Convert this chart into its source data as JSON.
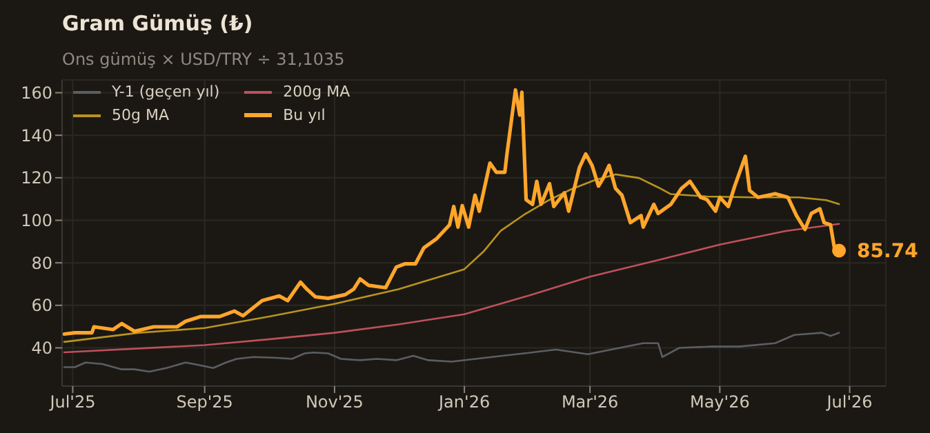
{
  "chart_data": {
    "type": "line",
    "title": "Gram Gümüş (₺)",
    "subtitle": "Ons gümüş × USD/TRY ÷ 31,1035",
    "xlim": [
      "2025-06-26",
      "2026-07-18"
    ],
    "xticks": [
      {
        "value": "2025-07-01",
        "label": "Jul'25"
      },
      {
        "value": "2025-09-01",
        "label": "Sep'25"
      },
      {
        "value": "2025-11-01",
        "label": "Nov'25"
      },
      {
        "value": "2026-01-01",
        "label": "Jan'26"
      },
      {
        "value": "2026-03-01",
        "label": "Mar'26"
      },
      {
        "value": "2026-05-01",
        "label": "May'26"
      },
      {
        "value": "2026-07-01",
        "label": "Jul'26"
      }
    ],
    "ylim": [
      22,
      166
    ],
    "yticks": [
      40,
      60,
      80,
      100,
      120,
      140,
      160
    ],
    "grid": true,
    "legend": "top left",
    "series": [
      {
        "name": "Y-1 (geçen yıl)",
        "color": "#5a5e64",
        "x": [
          "2025-06-27",
          "2025-07-02",
          "2025-07-07",
          "2025-07-15",
          "2025-07-24",
          "2025-07-30",
          "2025-08-06",
          "2025-08-14",
          "2025-08-23",
          "2025-08-29",
          "2025-09-05",
          "2025-09-11",
          "2025-09-16",
          "2025-09-24",
          "2025-10-05",
          "2025-10-12",
          "2025-10-18",
          "2025-10-22",
          "2025-10-29",
          "2025-11-04",
          "2025-11-13",
          "2025-11-21",
          "2025-11-30",
          "2025-12-08",
          "2025-12-15",
          "2025-12-26",
          "2026-01-14",
          "2026-01-29",
          "2026-02-13",
          "2026-02-28",
          "2026-03-13",
          "2026-03-26",
          "2026-04-02",
          "2026-04-04",
          "2026-04-12",
          "2026-04-27",
          "2026-05-10",
          "2026-05-27",
          "2026-06-05",
          "2026-06-18",
          "2026-06-22",
          "2026-06-26"
        ],
        "values": [
          30.9,
          30.9,
          33.1,
          32.4,
          29.9,
          29.9,
          28.8,
          30.5,
          33.1,
          32,
          30.5,
          33.1,
          34.8,
          35.7,
          35.3,
          34.8,
          37.4,
          37.8,
          37.4,
          34.8,
          34.2,
          34.8,
          34.2,
          36.3,
          34.2,
          33.5,
          35.7,
          37.4,
          39.2,
          37,
          39.6,
          42.2,
          42.2,
          35.7,
          40,
          40.6,
          40.6,
          42.2,
          46.1,
          47.1,
          45.6,
          47.1
        ]
      },
      {
        "name": "50g MA",
        "color": "#b8941e",
        "x": [
          "2025-06-27",
          "2025-08-01",
          "2025-09-01",
          "2025-10-01",
          "2025-11-01",
          "2025-12-01",
          "2026-01-01",
          "2026-01-10",
          "2026-01-18",
          "2026-01-29",
          "2026-02-09",
          "2026-02-20",
          "2026-03-03",
          "2026-03-13",
          "2026-03-24",
          "2026-04-02",
          "2026-04-08",
          "2026-04-25",
          "2026-05-17",
          "2026-06-07",
          "2026-06-20",
          "2026-06-26"
        ],
        "values": [
          42.8,
          47.1,
          49.3,
          54.7,
          60.7,
          67.6,
          77,
          85.3,
          95,
          102.6,
          109.1,
          114.5,
          118.8,
          121.6,
          119.9,
          115.5,
          112.3,
          111.2,
          110.8,
          110.8,
          109.5,
          107.6
        ]
      },
      {
        "name": "200g MA",
        "color": "#c0505a",
        "x": [
          "2025-06-27",
          "2025-09-01",
          "2025-10-01",
          "2025-11-01",
          "2025-12-01",
          "2026-01-01",
          "2026-02-01",
          "2026-03-01",
          "2026-04-01",
          "2026-05-01",
          "2026-06-01",
          "2026-06-26"
        ],
        "values": [
          37.9,
          41.3,
          44,
          47.1,
          51,
          55.8,
          64.8,
          73.5,
          81,
          88.6,
          95,
          98.3
        ]
      },
      {
        "name": "Bu yıl",
        "color": "#ffa62b",
        "x": [
          "2025-06-27",
          "2025-07-02",
          "2025-07-10",
          "2025-07-11",
          "2025-07-20",
          "2025-07-24",
          "2025-07-30",
          "2025-08-08",
          "2025-08-19",
          "2025-08-23",
          "2025-08-30",
          "2025-09-08",
          "2025-09-15",
          "2025-09-19",
          "2025-09-28",
          "2025-10-06",
          "2025-10-10",
          "2025-10-16",
          "2025-10-19",
          "2025-10-23",
          "2025-10-29",
          "2025-11-06",
          "2025-11-10",
          "2025-11-13",
          "2025-11-17",
          "2025-11-25",
          "2025-11-30",
          "2025-12-04",
          "2025-12-09",
          "2025-12-13",
          "2025-12-19",
          "2025-12-25",
          "2025-12-27",
          "2025-12-29",
          "2025-12-31",
          "2026-01-03",
          "2026-01-06",
          "2026-01-08",
          "2026-01-13",
          "2026-01-16",
          "2026-01-20",
          "2026-01-21",
          "2026-01-25",
          "2026-01-27",
          "2026-01-28",
          "2026-01-30",
          "2026-02-02",
          "2026-02-04",
          "2026-02-06",
          "2026-02-10",
          "2026-02-12",
          "2026-02-17",
          "2026-02-19",
          "2026-02-24",
          "2026-02-27",
          "2026-03-02",
          "2026-03-05",
          "2026-03-07",
          "2026-03-10",
          "2026-03-13",
          "2026-03-16",
          "2026-03-20",
          "2026-03-25",
          "2026-03-26",
          "2026-03-31",
          "2026-04-02",
          "2026-04-08",
          "2026-04-13",
          "2026-04-17",
          "2026-04-22",
          "2026-04-25",
          "2026-04-29",
          "2026-05-01",
          "2026-05-05",
          "2026-05-08",
          "2026-05-13",
          "2026-05-15",
          "2026-05-19",
          "2026-05-27",
          "2026-06-02",
          "2026-06-06",
          "2026-06-10",
          "2026-06-13",
          "2026-06-17",
          "2026-06-19",
          "2026-06-22",
          "2026-06-24",
          "2026-06-26"
        ],
        "values": [
          46.5,
          47.1,
          47.1,
          49.9,
          48.6,
          51.4,
          47.8,
          49.9,
          49.9,
          52.5,
          54.7,
          54.7,
          57.3,
          55.1,
          62.2,
          64.4,
          62.2,
          70.9,
          67.6,
          64,
          63.3,
          65,
          67.6,
          72.4,
          69.4,
          68.3,
          78,
          79.5,
          79.5,
          87.1,
          91.4,
          97.8,
          106.5,
          96.8,
          106.9,
          96.8,
          111.8,
          104.3,
          126.9,
          122.6,
          122.6,
          131.2,
          161.3,
          149.5,
          160.2,
          109.7,
          107.5,
          118.3,
          107.5,
          117.2,
          106.5,
          112.9,
          104.3,
          124.7,
          131.2,
          125.8,
          116.1,
          119.4,
          125.8,
          115,
          111.8,
          98.9,
          102.2,
          96.8,
          107.5,
          103.2,
          107.5,
          115,
          118.3,
          110.8,
          109.7,
          104.3,
          110.8,
          106.5,
          116.1,
          130.1,
          114,
          110.8,
          112.5,
          110.8,
          102.2,
          95.7,
          103.2,
          105.4,
          98.9,
          97.9,
          86,
          85.74
        ]
      }
    ],
    "annotations": [
      {
        "text": "85.74",
        "x": "2026-06-26",
        "y": 85.74
      }
    ]
  }
}
